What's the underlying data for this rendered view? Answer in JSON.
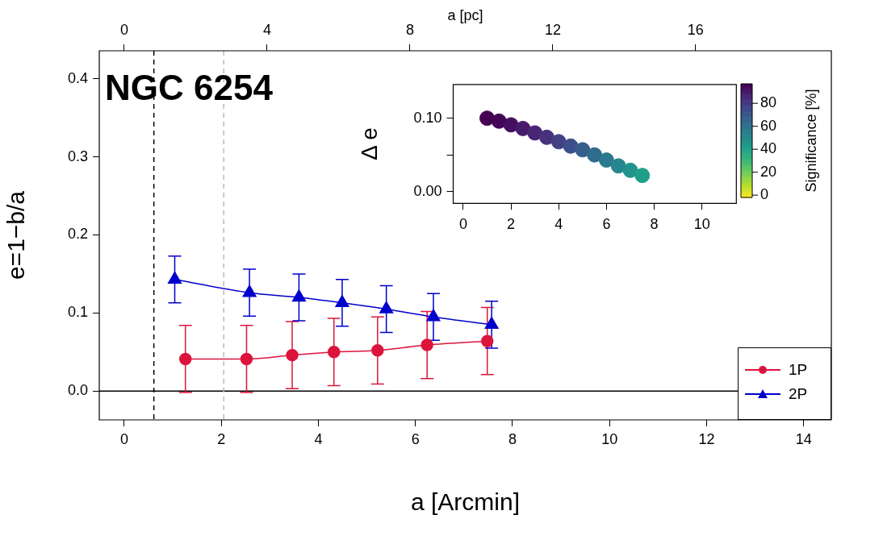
{
  "chart_data": [
    {
      "type": "line",
      "title": "NGC 6254",
      "xlabel": "a [Arcmin]",
      "ylabel": "e=1−b/a",
      "x2label": "a [pc]",
      "xlim": [
        -0.515,
        14.57
      ],
      "xticks": [
        0,
        2,
        4,
        6,
        8,
        10,
        12,
        14
      ],
      "x2lim": [
        -0.7,
        19.8
      ],
      "x2ticks": [
        0,
        4,
        8,
        12,
        16
      ],
      "ylim": [
        -0.037,
        0.436
      ],
      "yticks": [
        {
          "value": 0,
          "label": "0.0"
        },
        {
          "value": 0.1,
          "label": "0.1"
        },
        {
          "value": 0.2,
          "label": "0.2"
        },
        {
          "value": 0.3,
          "label": "0.3"
        },
        {
          "value": 0.4,
          "label": "0.4"
        }
      ],
      "legend": "bottom right",
      "ref_lines": [
        {
          "axis": "y",
          "value": 0,
          "color": "#000000",
          "line_style": "solid"
        },
        {
          "axis": "x",
          "value": 0.61,
          "color": "#000000",
          "line_style": "dashed"
        },
        {
          "axis": "x",
          "value": 2.05,
          "color": "#bbbbbb",
          "line_style": "dashed"
        }
      ],
      "series": [
        {
          "name": "1P",
          "color": "#dc143c",
          "marker": "circle",
          "x": [
            1.26,
            2.52,
            3.46,
            4.32,
            5.22,
            6.24,
            7.48
          ],
          "values": [
            0.041,
            0.041,
            0.046,
            0.05,
            0.052,
            0.059,
            0.064
          ],
          "errors": [
            0.043,
            0.043,
            0.043,
            0.043,
            0.043,
            0.043,
            0.043
          ]
        },
        {
          "name": "2P",
          "color": "#0000cd",
          "marker": "triangle",
          "x": [
            1.04,
            2.58,
            3.6,
            4.49,
            5.4,
            6.37,
            7.57
          ],
          "values": [
            0.143,
            0.126,
            0.12,
            0.113,
            0.105,
            0.095,
            0.085
          ],
          "errors": [
            0.03,
            0.03,
            0.03,
            0.03,
            0.03,
            0.03,
            0.03
          ]
        }
      ]
    },
    {
      "type": "scatter",
      "ylabel": "Δ e",
      "clabel": "Significance [%]",
      "marker": "circle",
      "xlim": [
        -0.42,
        11.44
      ],
      "xticks": [
        0,
        2,
        4,
        6,
        8,
        10
      ],
      "ylim": [
        -0.016,
        0.146
      ],
      "yticks": [
        {
          "value": 0,
          "label": "0.00"
        },
        {
          "value": 0.05,
          "label": null
        },
        {
          "value": 0.1,
          "label": "0.10"
        }
      ],
      "clim": [
        -2,
        97
      ],
      "cticks": [
        0,
        20,
        40,
        60,
        80
      ],
      "x": [
        1,
        1.5,
        2,
        2.5,
        3,
        3.5,
        4,
        4.5,
        5,
        5.5,
        6,
        6.5,
        7,
        7.5
      ],
      "values": [
        0.1,
        0.096,
        0.091,
        0.086,
        0.08,
        0.074,
        0.068,
        0.062,
        0.057,
        0.05,
        0.043,
        0.035,
        0.029,
        0.022
      ],
      "cvalues": [
        97,
        96,
        93,
        90,
        87,
        83,
        78,
        73,
        68,
        62,
        57,
        51,
        46,
        42
      ]
    }
  ]
}
